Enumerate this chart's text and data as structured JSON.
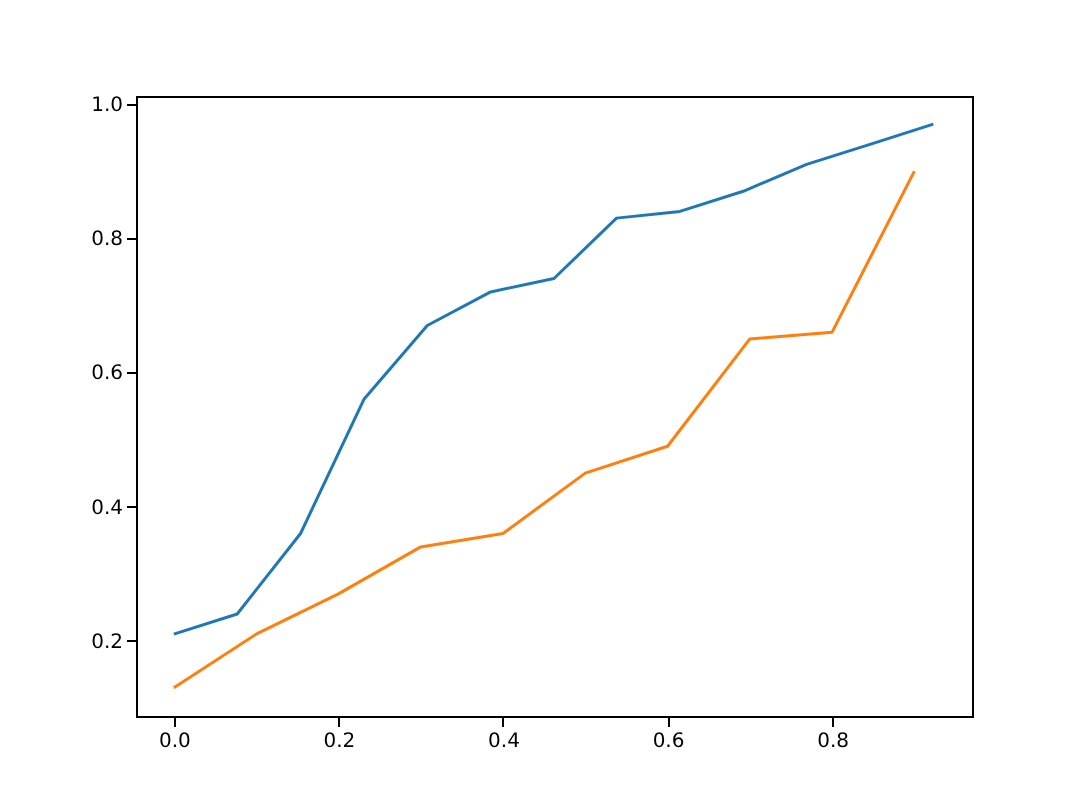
{
  "chart_data": {
    "type": "line",
    "xlim": [
      -0.046,
      0.97
    ],
    "ylim": [
      0.088,
      1.012
    ],
    "xticks": [
      {
        "value": 0,
        "label": "0.0"
      },
      0.2,
      0.4,
      0.6,
      0.8
    ],
    "yticks": [
      0.2,
      0.4,
      0.6,
      0.8,
      {
        "value": 1,
        "label": "1.0"
      }
    ],
    "marker": "none",
    "line_style": "solid",
    "series": [
      {
        "color": "#1f77b4",
        "x": [
          0,
          0.077,
          0.154,
          0.231,
          0.308,
          0.385,
          0.462,
          0.538,
          0.615,
          0.692,
          0.769,
          0.846,
          0.923
        ],
        "values": [
          0.21,
          0.24,
          0.36,
          0.56,
          0.67,
          0.72,
          0.74,
          0.83,
          0.84,
          0.87,
          0.91,
          0.94,
          0.97
        ]
      },
      {
        "color": "#ff7f0e",
        "x": [
          0,
          0.1,
          0.2,
          0.3,
          0.4,
          0.5,
          0.6,
          0.7,
          0.8,
          0.9
        ],
        "values": [
          0.13,
          0.21,
          0.27,
          0.34,
          0.36,
          0.45,
          0.49,
          0.65,
          0.66,
          0.9
        ]
      }
    ]
  }
}
